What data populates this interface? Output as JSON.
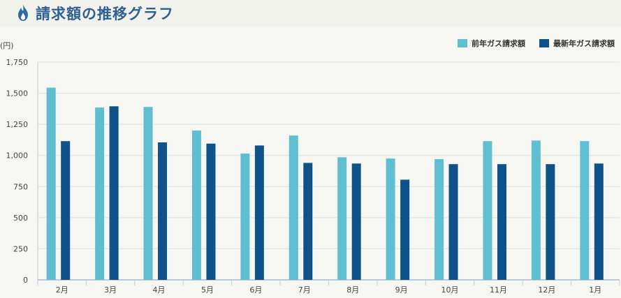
{
  "header": {
    "title": "請求額の推移グラフ",
    "icon": "flame-icon"
  },
  "colors": {
    "title": "#2f6090",
    "prev": "#5fbfd1",
    "latest": "#0f5189",
    "icon": "#2f6aa0"
  },
  "unit_label": "(円)",
  "legend": {
    "prev": "前年ガス請求額",
    "latest": "最新年ガス請求額"
  },
  "chart_data": {
    "type": "bar",
    "title": "請求額の推移グラフ",
    "ylabel": "(円)",
    "xlabel": "",
    "categories": [
      "2月",
      "3月",
      "4月",
      "5月",
      "6月",
      "7月",
      "8月",
      "9月",
      "10月",
      "11月",
      "12月",
      "1月"
    ],
    "series": [
      {
        "name": "前年ガス請求額",
        "values": [
          1545,
          1385,
          1390,
          1200,
          1015,
          1160,
          985,
          975,
          970,
          1115,
          1120,
          1115
        ]
      },
      {
        "name": "最新年ガス請求額",
        "values": [
          1115,
          1395,
          1105,
          1095,
          1080,
          940,
          935,
          805,
          930,
          930,
          930,
          935
        ]
      }
    ],
    "ylim": [
      0,
      1750
    ],
    "yticks": [
      0,
      250,
      500,
      750,
      1000,
      1250,
      1500,
      1750
    ],
    "ytick_labels": [
      "0",
      "250",
      "500",
      "750",
      "1,000",
      "1,250",
      "1,500",
      "1,750"
    ],
    "grid": true,
    "legend_position": "top-right"
  }
}
